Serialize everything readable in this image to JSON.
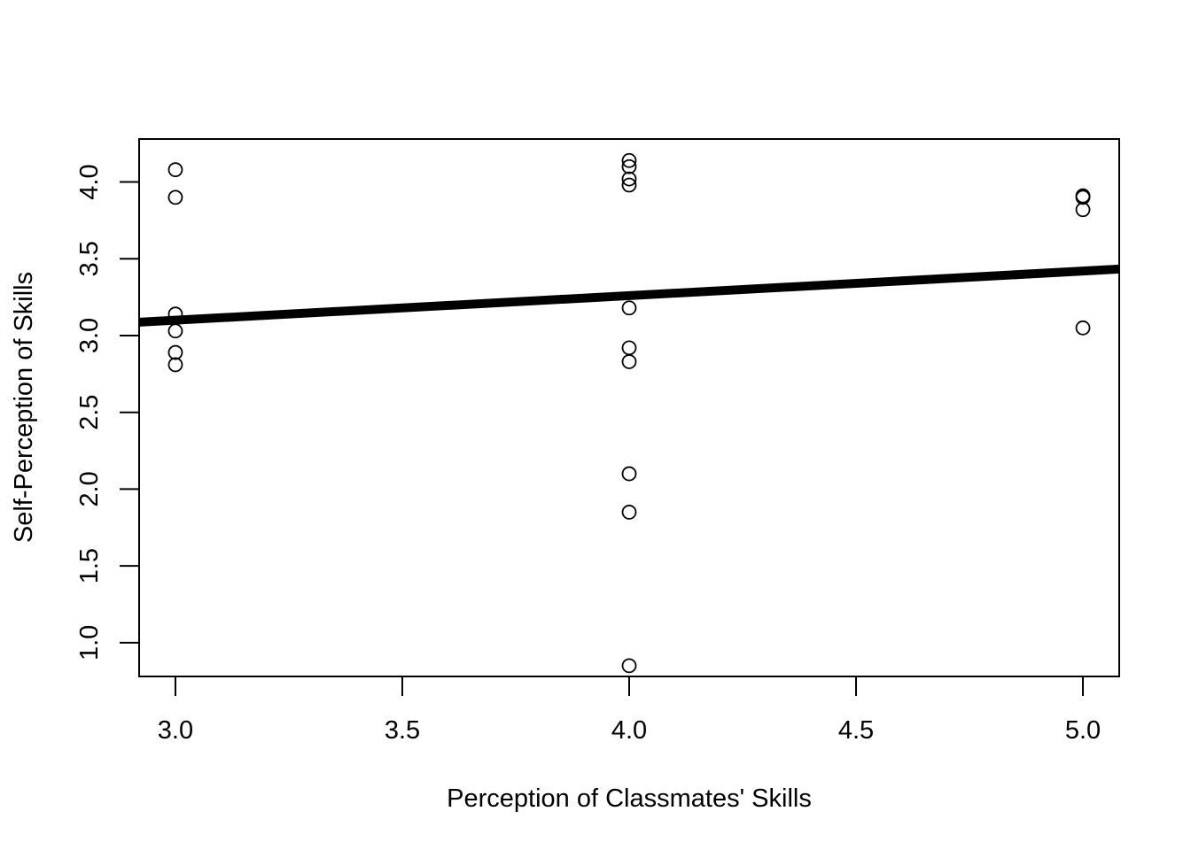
{
  "chart_data": {
    "type": "scatter",
    "title": "",
    "xlabel": "Perception of Classmates' Skills",
    "ylabel": "Self-Perception of Skills",
    "xlim": [
      2.92,
      5.08
    ],
    "ylim": [
      0.78,
      4.28
    ],
    "x_ticks": [
      3.0,
      3.5,
      4.0,
      4.5,
      5.0
    ],
    "x_tick_labels": [
      "3.0",
      "3.5",
      "4.0",
      "4.5",
      "5.0"
    ],
    "y_ticks": [
      1.0,
      1.5,
      2.0,
      2.5,
      3.0,
      3.5,
      4.0
    ],
    "y_tick_labels": [
      "1.0",
      "1.5",
      "2.0",
      "2.5",
      "3.0",
      "3.5",
      "4.0"
    ],
    "grid": false,
    "marker": "open-circle",
    "points": [
      {
        "x": 3,
        "y": 4.08
      },
      {
        "x": 3,
        "y": 3.9
      },
      {
        "x": 3,
        "y": 3.14
      },
      {
        "x": 3,
        "y": 3.03
      },
      {
        "x": 3,
        "y": 2.89
      },
      {
        "x": 3,
        "y": 2.81
      },
      {
        "x": 4,
        "y": 4.14
      },
      {
        "x": 4,
        "y": 4.1
      },
      {
        "x": 4,
        "y": 4.02
      },
      {
        "x": 4,
        "y": 3.98
      },
      {
        "x": 4,
        "y": 3.18
      },
      {
        "x": 4,
        "y": 2.92
      },
      {
        "x": 4,
        "y": 2.83
      },
      {
        "x": 4,
        "y": 2.1
      },
      {
        "x": 4,
        "y": 1.85
      },
      {
        "x": 4,
        "y": 0.85
      },
      {
        "x": 5,
        "y": 3.91
      },
      {
        "x": 5,
        "y": 3.9
      },
      {
        "x": 5,
        "y": 3.82
      },
      {
        "x": 5,
        "y": 3.05
      }
    ],
    "fit_line": {
      "intercept": 2.62,
      "slope": 0.16,
      "color": "#000000"
    }
  }
}
